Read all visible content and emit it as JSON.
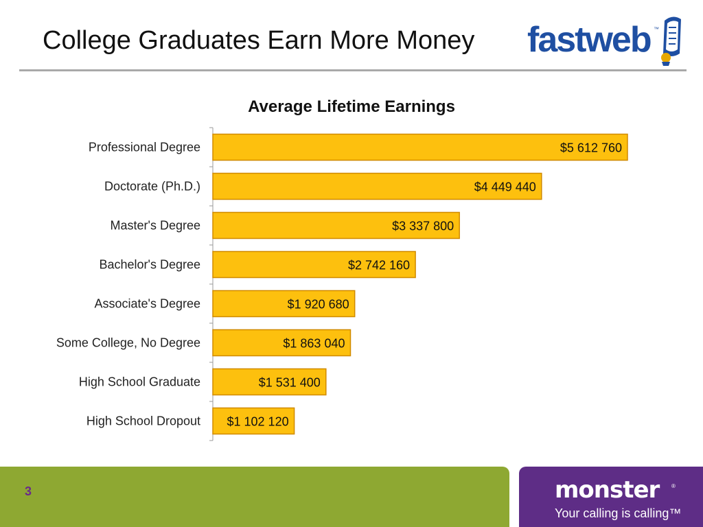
{
  "slide": {
    "title": "College Graduates Earn More Money",
    "page_number": "3"
  },
  "logos": {
    "fastweb": {
      "part1": "fast",
      "part2": "web",
      "trademark": "™",
      "icon": "scroll-icon"
    },
    "monster": {
      "word": "monster",
      "registered": "®",
      "tagline": "Your calling is calling™"
    }
  },
  "colors": {
    "bar_fill": "#fdc00e",
    "bar_stroke": "#d08a00",
    "footer_green": "#8ea832",
    "footer_purple": "#5e2d86",
    "fastweb_blue": "#1f4fa2"
  },
  "chart_data": {
    "type": "bar",
    "orientation": "horizontal",
    "title": "Average Lifetime Earnings",
    "xlabel": "",
    "ylabel": "",
    "categories": [
      "Professional Degree",
      "Doctorate (Ph.D.)",
      "Master's Degree",
      "Bachelor's Degree",
      "Associate's Degree",
      "Some College, No Degree",
      "High School Graduate",
      "High School Dropout"
    ],
    "values": [
      5612760,
      4449440,
      3337800,
      2742160,
      1920680,
      1863040,
      1531400,
      1102120
    ],
    "data_labels": [
      "$5 612 760",
      "$4 449 440",
      "$3 337 800",
      "$2 742 160",
      "$1 920 680",
      "$1 863 040",
      "$1 531 400",
      "$1 102 120"
    ],
    "xlim": [
      0,
      5612760
    ],
    "grid": false,
    "legend": "none"
  }
}
